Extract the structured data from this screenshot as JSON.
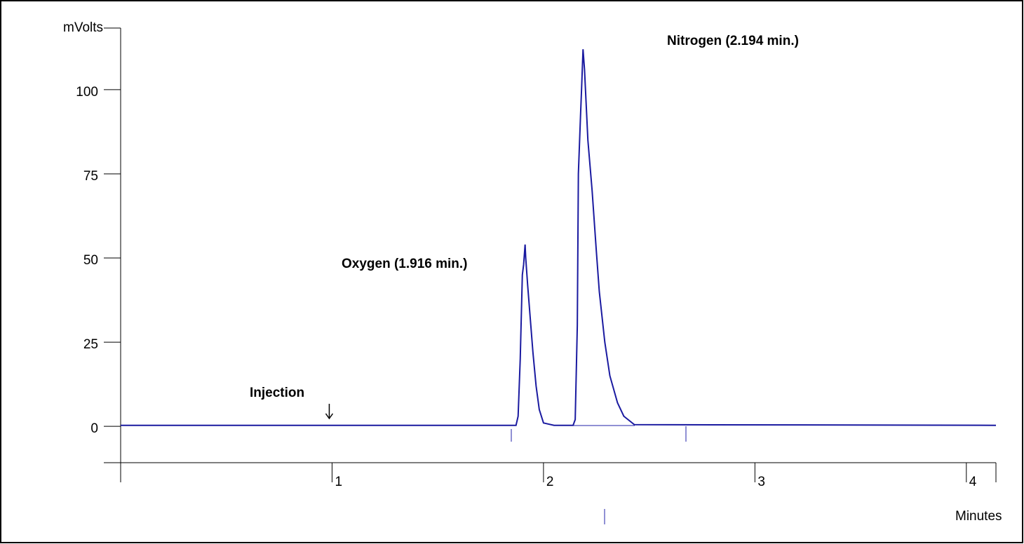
{
  "chart_data": {
    "type": "line",
    "xlabel": "Minutes",
    "ylabel": "mVolts",
    "x": [
      0,
      1.0,
      1.87,
      1.88,
      1.89,
      1.9,
      1.906,
      1.913,
      1.916,
      1.925,
      1.94,
      1.95,
      1.965,
      1.98,
      2.0,
      2.05,
      2.14,
      2.15,
      2.16,
      2.165,
      2.175,
      2.18,
      2.187,
      2.194,
      2.21,
      2.23,
      2.25,
      2.264,
      2.29,
      2.314,
      2.35,
      2.38,
      2.43,
      4.14
    ],
    "values": [
      0.3,
      0.3,
      0.3,
      3,
      20,
      45,
      48,
      54,
      50,
      42,
      30,
      22,
      12,
      5,
      1,
      0.3,
      0.3,
      2,
      30,
      75,
      92,
      100,
      112,
      106,
      85,
      70,
      52,
      40,
      25,
      15,
      7,
      3,
      0.5,
      0.3
    ],
    "color": "#1a1aa0",
    "xlim": [
      0,
      4.14
    ],
    "xticks": [
      1,
      2,
      3,
      4
    ],
    "ylim": [
      -10.8,
      118.3
    ],
    "yticks": [
      0,
      25,
      50,
      75,
      100
    ],
    "annotations": [
      {
        "text": "Injection",
        "x": 1.0
      },
      {
        "text": "Oxygen (1.916 min.)",
        "x": 1.916
      },
      {
        "text": "Nitrogen (2.194 min.)",
        "x": 2.194
      }
    ]
  }
}
